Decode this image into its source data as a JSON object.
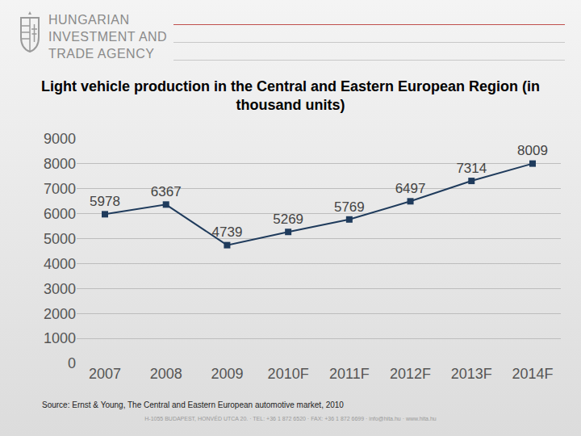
{
  "page": {
    "header_lines": [
      "HUNGARIAN",
      "INVESTMENT AND",
      "TRADE AGENCY"
    ],
    "source": "Source: Ernst & Young, The Central and Eastern European automotive market, 2010",
    "footer": "H-1055 BUDAPEST, HONVÉD UTCA 20. · TEL: +36 1 872 6520 · FAX: +36 1 872 6699 · info@hita.hu · www.hita.hu"
  },
  "chart_data": {
    "type": "line",
    "title": "Light vehicle production in the Central and Eastern European Region (in thousand units)",
    "categories": [
      "2007",
      "2008",
      "2009",
      "2010F",
      "2011F",
      "2012F",
      "2013F",
      "2014F"
    ],
    "values": [
      5978,
      6367,
      4739,
      5269,
      5769,
      6497,
      7314,
      8009
    ],
    "color": "#1f3b5c",
    "marker": "square",
    "ylim": [
      0,
      9000
    ],
    "yticks": [
      0,
      1000,
      2000,
      3000,
      4000,
      5000,
      6000,
      7000,
      8000,
      9000
    ],
    "grid": true,
    "data_labels": true
  }
}
